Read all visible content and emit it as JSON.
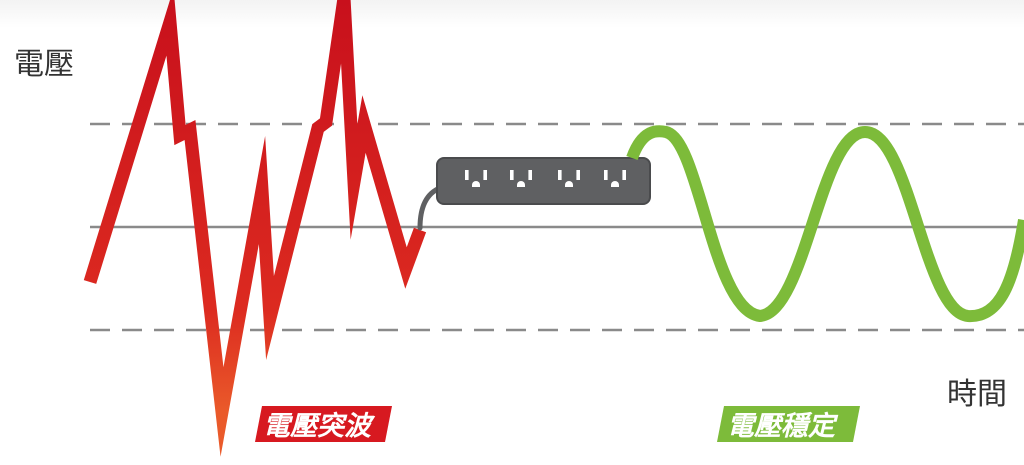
{
  "y_axis_label": "電壓",
  "x_axis_label": "時間",
  "surge_label": "電壓突波",
  "stable_label": "電壓穩定",
  "colors": {
    "surge": "#d71920",
    "stable": "#7dbb3a",
    "power_strip": "#5f6062",
    "guide_lines": "#8a8a8a"
  },
  "power_strip": {
    "outlet_count": 4
  },
  "icons": [
    "power-strip-icon",
    "outlet-icon",
    "power-cord-icon"
  ]
}
